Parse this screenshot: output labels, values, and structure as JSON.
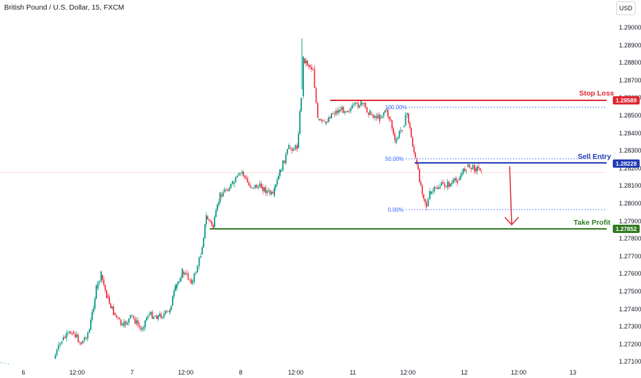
{
  "title": "British Pound / U.S. Dollar, 15, FXCM",
  "currency_button": "USD",
  "price_ticks": [
    "1.29000",
    "1.28900",
    "1.28800",
    "1.28700",
    "1.28600",
    "1.28500",
    "1.28400",
    "1.28300",
    "1.28200",
    "1.28100",
    "1.28000",
    "1.27900",
    "1.27800",
    "1.27700",
    "1.27600",
    "1.27500",
    "1.27400",
    "1.27300",
    "1.27200",
    "1.27100"
  ],
  "time_ticks": [
    "6",
    "12:00",
    "7",
    "12:00",
    "8",
    "12:00",
    "11",
    "12:00",
    "12",
    "12:00",
    "13"
  ],
  "levels": {
    "stop_loss": {
      "label": "Stop Loss",
      "price": "1.28589",
      "color": "#e0252f"
    },
    "sell_entry": {
      "label": "Sell Entry",
      "price": "1.28228",
      "color": "#1f3bb5"
    },
    "take_profit": {
      "label": "Take Profit",
      "price": "1.27852",
      "color": "#2f7a1e"
    }
  },
  "fib": {
    "top": "100.00%",
    "mid": "50.00%",
    "bottom": "0.00%"
  },
  "colors": {
    "up": "#089981",
    "down": "#f23645",
    "arrow": "#e0252f",
    "fib": "#2962ff"
  }
}
